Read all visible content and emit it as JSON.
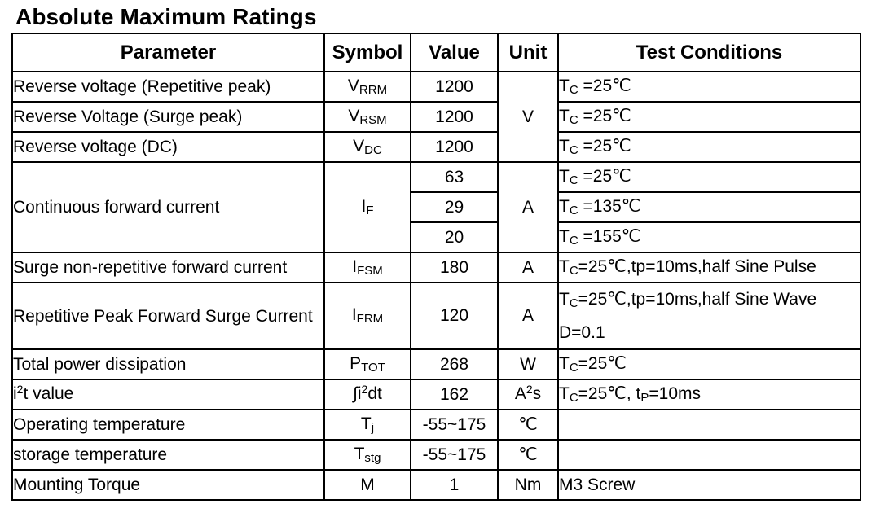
{
  "title": "Absolute Maximum Ratings",
  "headers": {
    "parameter": "Parameter",
    "symbol": "Symbol",
    "value": "Value",
    "unit": "Unit",
    "conditions": "Test Conditions"
  },
  "rows": {
    "vrrm": {
      "parameter": "Reverse voltage (Repetitive peak)",
      "symbol_main": "V",
      "symbol_sub": "RRM",
      "value": "1200",
      "unit": "V",
      "cond_main": "T",
      "cond_sub": "C",
      "cond_rest": " =25℃"
    },
    "vrsm": {
      "parameter": "Reverse Voltage (Surge peak)",
      "symbol_main": "V",
      "symbol_sub": "RSM",
      "value": "1200",
      "cond_main": "T",
      "cond_sub": "C",
      "cond_rest": " =25℃"
    },
    "vdc": {
      "parameter": "Reverse voltage (DC)",
      "symbol_main": "V",
      "symbol_sub": "DC",
      "value": "1200",
      "cond_main": "T",
      "cond_sub": "C",
      "cond_rest": " =25℃"
    },
    "if": {
      "parameter": "Continuous forward current",
      "symbol_main": "I",
      "symbol_sub": "F",
      "unit": "A",
      "values": [
        "63",
        "29",
        "20"
      ],
      "cond_main": [
        "T",
        "T",
        "T"
      ],
      "cond_sub": [
        "C",
        "C",
        "C"
      ],
      "cond_rest": [
        " =25℃",
        " =135℃",
        " =155℃"
      ]
    },
    "ifsm": {
      "parameter": "Surge non-repetitive forward current",
      "symbol_main": "I",
      "symbol_sub": "FSM",
      "value": "180",
      "unit": "A",
      "cond_main": "T",
      "cond_sub": "C",
      "cond_rest": "=25℃,tp=10ms,half Sine Pulse"
    },
    "ifrm": {
      "parameter": "Repetitive Peak Forward Surge Current",
      "symbol_main": "I",
      "symbol_sub": "FRM",
      "value": "120",
      "unit": "A",
      "cond_main": "T",
      "cond_sub": "C",
      "cond_rest": "=25℃,tp=10ms,half Sine Wave",
      "cond_line2": "D=0.1"
    },
    "ptot": {
      "parameter": "Total power dissipation",
      "symbol_main": "P",
      "symbol_sub": "TOT",
      "value": "268",
      "unit": "W",
      "cond_main": "T",
      "cond_sub": "C",
      "cond_rest": "=25℃"
    },
    "i2t": {
      "parameter_a": "i",
      "parameter_sup": "2",
      "parameter_b": "t value",
      "symbol_a": "∫i",
      "symbol_sup": "2",
      "symbol_b": "dt",
      "value": "162",
      "unit_a": "A",
      "unit_sup": "2",
      "unit_b": "s",
      "cond_main": "T",
      "cond_sub": "C",
      "cond_mid": "=25℃, t",
      "cond_sub2": "P",
      "cond_rest": "=10ms"
    },
    "tj": {
      "parameter": "Operating temperature",
      "symbol_main": "T",
      "symbol_sub": "j",
      "value": "-55~175",
      "unit": "℃"
    },
    "tstg": {
      "parameter": "storage temperature",
      "symbol_main": "T",
      "symbol_sub": "stg",
      "value": "-55~175",
      "unit": "℃"
    },
    "torque": {
      "parameter": "Mounting Torque",
      "symbol": "M",
      "value": "1",
      "unit": "Nm",
      "conditions": "M3 Screw"
    }
  }
}
